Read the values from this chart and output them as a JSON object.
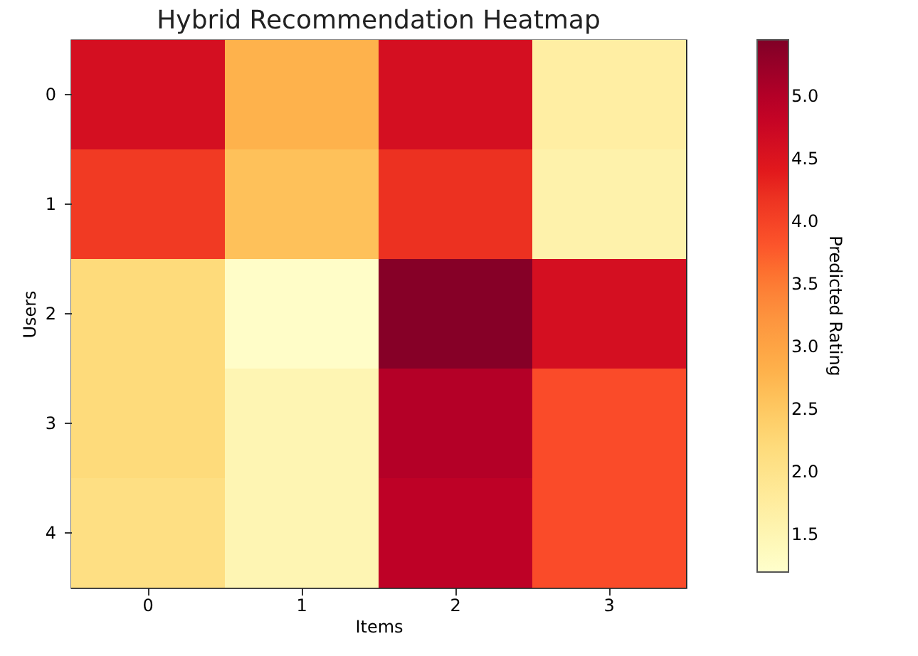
{
  "chart_data": {
    "type": "heatmap",
    "title": "Hybrid Recommendation Heatmap",
    "xlabel": "Items",
    "ylabel": "Users",
    "clabel": "Predicted Rating",
    "categories": [
      "0",
      "1",
      "2",
      "3"
    ],
    "y_categories": [
      "0",
      "1",
      "2",
      "3",
      "4"
    ],
    "cells": [
      [
        4.6,
        2.8,
        4.6,
        1.7
      ],
      [
        4.1,
        2.6,
        4.2,
        1.6
      ],
      [
        2.2,
        1.25,
        5.4,
        4.6
      ],
      [
        2.2,
        1.5,
        5.0,
        3.9
      ],
      [
        2.1,
        1.5,
        4.9,
        3.9
      ]
    ],
    "clim": [
      1.2,
      5.45
    ],
    "cticks": [
      1.5,
      {
        "value": 2,
        "label": "2.0"
      },
      2.5,
      {
        "value": 3,
        "label": "3.0"
      },
      3.5,
      {
        "value": 4,
        "label": "4.0"
      },
      4.5,
      {
        "value": 5,
        "label": "5.0"
      }
    ]
  }
}
